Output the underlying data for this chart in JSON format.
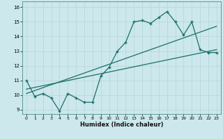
{
  "title": "",
  "xlabel": "Humidex (Indice chaleur)",
  "ylabel": "",
  "bg_color": "#cce8ec",
  "line_color": "#1a6e6a",
  "grid_color": "#b8d8dc",
  "xlim": [
    -0.5,
    23.5
  ],
  "ylim": [
    8.7,
    16.4
  ],
  "yticks": [
    9,
    10,
    11,
    12,
    13,
    14,
    15,
    16
  ],
  "xticks": [
    0,
    1,
    2,
    3,
    4,
    5,
    6,
    7,
    8,
    9,
    10,
    11,
    12,
    13,
    14,
    15,
    16,
    17,
    18,
    19,
    20,
    21,
    22,
    23
  ],
  "main_x": [
    0,
    1,
    2,
    3,
    4,
    5,
    6,
    7,
    8,
    9,
    10,
    11,
    12,
    13,
    14,
    15,
    16,
    17,
    18,
    19,
    20,
    21,
    22,
    23
  ],
  "main_y": [
    11.0,
    9.9,
    10.1,
    9.8,
    8.9,
    10.1,
    9.8,
    9.5,
    9.5,
    11.3,
    11.9,
    13.0,
    13.6,
    15.0,
    15.1,
    14.9,
    15.3,
    15.7,
    15.0,
    14.1,
    15.0,
    13.1,
    12.9,
    12.9
  ],
  "trend1_x": [
    0,
    23
  ],
  "trend1_y": [
    10.1,
    14.7
  ],
  "trend2_x": [
    0,
    23
  ],
  "trend2_y": [
    10.4,
    13.1
  ],
  "figsize": [
    3.2,
    2.0
  ],
  "dpi": 100
}
